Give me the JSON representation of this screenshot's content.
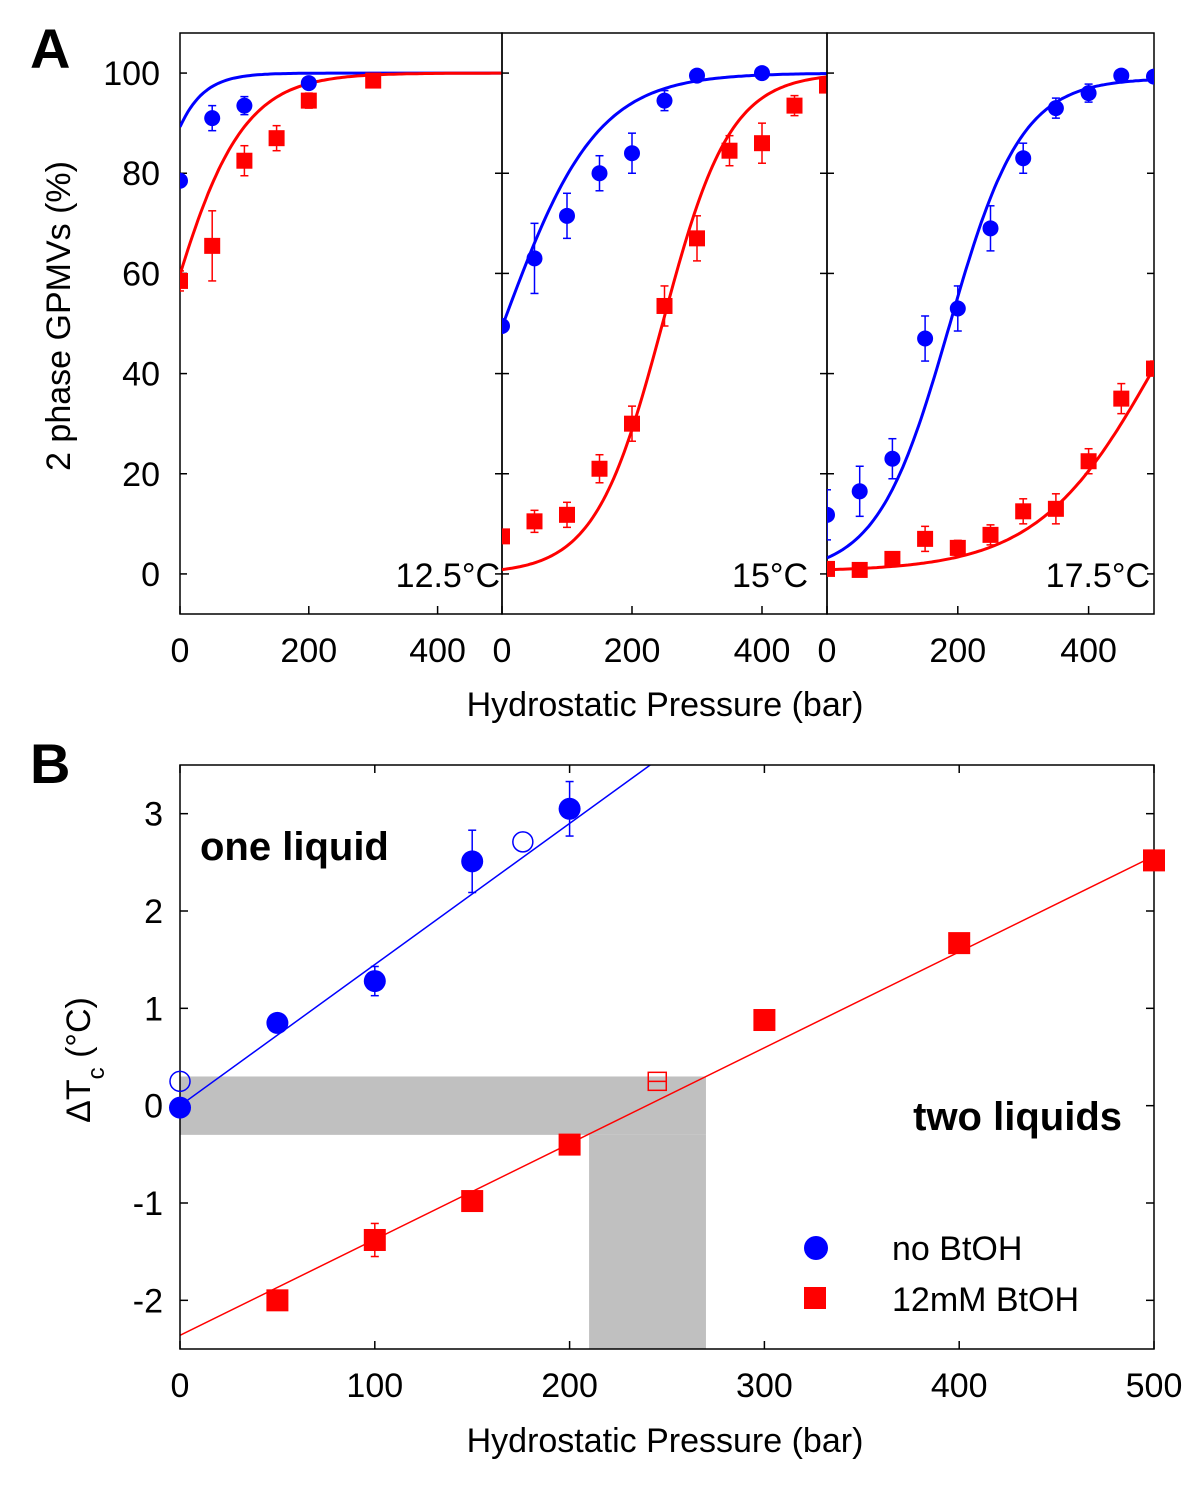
{
  "colors": {
    "blue": "#0000ff",
    "red": "#ff0000",
    "shade": "#c0c0c0",
    "axis": "#000000"
  },
  "figure": {
    "panelA": {
      "letter": "A",
      "ylabel": "2 phase GPMVs (%)",
      "xlabel": "Hydrostatic Pressure (bar)",
      "ylim": [
        -8,
        108
      ],
      "yticks": [
        0,
        20,
        40,
        60,
        80,
        100
      ],
      "ytick_labels": [
        "0",
        "20",
        "40",
        "60",
        "80",
        "100"
      ],
      "xlim": [
        0,
        500
      ],
      "xticks": [
        0,
        200,
        400
      ],
      "xtick_labels": [
        "0",
        "200",
        "400"
      ],
      "subpanels": [
        {
          "temperature": "12.5°C",
          "blue": {
            "points": [
              [
                0,
                78.5,
                0
              ],
              [
                50,
                91,
                2.5
              ],
              [
                100,
                93.5,
                1.8
              ],
              [
                200,
                98,
                1
              ]
            ],
            "fit": {
              "A": 0,
              "B": 100,
              "x0": -72,
              "k": 34
            }
          },
          "red": {
            "points": [
              [
                0,
                58.5,
                2
              ],
              [
                50,
                65.5,
                7
              ],
              [
                100,
                82.5,
                3
              ],
              [
                150,
                87,
                2.5
              ],
              [
                200,
                94.5,
                1.5
              ],
              [
                300,
                98.5,
                1
              ]
            ],
            "fit": {
              "A": 0,
              "B": 100,
              "x0": -23,
              "k": 58
            }
          }
        },
        {
          "temperature": "15°C",
          "blue": {
            "points": [
              [
                0,
                49.5,
                0
              ],
              [
                50,
                63,
                7
              ],
              [
                100,
                71.5,
                4.5
              ],
              [
                150,
                80,
                3.5
              ],
              [
                200,
                84,
                4
              ],
              [
                250,
                94.5,
                2
              ],
              [
                300,
                99.5,
                1
              ],
              [
                400,
                100,
                1
              ]
            ],
            "fit": {
              "A": 0,
              "B": 100,
              "x0": 2,
              "k": 72
            }
          },
          "red": {
            "points": [
              [
                0,
                7.5,
                1
              ],
              [
                50,
                10.5,
                2.2
              ],
              [
                100,
                11.8,
                2.5
              ],
              [
                150,
                21,
                2.8
              ],
              [
                200,
                30,
                3.5
              ],
              [
                250,
                53.5,
                4
              ],
              [
                300,
                67,
                4.5
              ],
              [
                350,
                84.5,
                3
              ],
              [
                400,
                86,
                4
              ],
              [
                450,
                93.5,
                2
              ],
              [
                500,
                97.5,
                1
              ]
            ],
            "fit": {
              "A": 0,
              "B": 100,
              "x0": 247,
              "k": 52
            }
          }
        },
        {
          "temperature": "17.5°C",
          "blue": {
            "points": [
              [
                0,
                11.8,
                5
              ],
              [
                50,
                16.5,
                5
              ],
              [
                100,
                23,
                4
              ],
              [
                150,
                47,
                4.5
              ],
              [
                200,
                53,
                4.5
              ],
              [
                250,
                69,
                4.5
              ],
              [
                300,
                83,
                3
              ],
              [
                350,
                93,
                2
              ],
              [
                400,
                96,
                1.8
              ],
              [
                450,
                99.5,
                1
              ],
              [
                500,
                99.3,
                1
              ]
            ],
            "fit": {
              "A": 0,
              "B": 99,
              "x0": 187,
              "k": 55
            }
          },
          "red": {
            "points": [
              [
                0,
                1,
                0.6
              ],
              [
                50,
                0.8,
                0.6
              ],
              [
                100,
                3,
                0.8
              ],
              [
                150,
                7,
                2.5
              ],
              [
                200,
                5.2,
                1.5
              ],
              [
                250,
                7.8,
                2
              ],
              [
                300,
                12.5,
                2.5
              ],
              [
                350,
                13,
                3
              ],
              [
                400,
                22.5,
                2.5
              ],
              [
                450,
                35,
                3
              ],
              [
                500,
                41,
                1.5
              ]
            ],
            "fit": {
              "A": 0.5,
              "B": 85,
              "x0": 508,
              "k": 92
            }
          }
        }
      ]
    },
    "panelB": {
      "letter": "B",
      "ylabel": "ΔT",
      "ylabel_sub": "c",
      "ylabel_unit": " (°C)",
      "xlabel": "Hydrostatic Pressure (bar)",
      "xlim": [
        0,
        500
      ],
      "ylim": [
        -2.5,
        3.5
      ],
      "xticks": [
        0,
        100,
        200,
        300,
        400,
        500
      ],
      "xtick_labels": [
        "0",
        "100",
        "200",
        "300",
        "400",
        "500"
      ],
      "yticks": [
        -2,
        -1,
        0,
        1,
        2,
        3
      ],
      "ytick_labels": [
        "-2",
        "-1",
        "0",
        "1",
        "2",
        "3"
      ],
      "region_top": "one liquid",
      "region_bottom": "two liquids",
      "blue_fit": {
        "slope": 0.0145,
        "intercept": 0
      },
      "red_fit": {
        "slope": 0.00985,
        "intercept": -2.36
      },
      "blue_points": [
        [
          0,
          -0.02,
          0.08
        ],
        [
          50,
          0.85,
          0.06
        ],
        [
          100,
          1.28,
          0.15
        ],
        [
          150,
          2.51,
          0.32
        ],
        [
          200,
          3.05,
          0.28
        ]
      ],
      "blue_open_points": [
        [
          0,
          0.25
        ],
        [
          176,
          2.71
        ]
      ],
      "red_points": [
        [
          50,
          -2.0,
          0.08
        ],
        [
          100,
          -1.38,
          0.17
        ],
        [
          150,
          -0.98,
          0.1
        ],
        [
          200,
          -0.4,
          0.05
        ],
        [
          300,
          0.88,
          0.05
        ],
        [
          400,
          1.67,
          0.05
        ],
        [
          500,
          2.52,
          0.05
        ]
      ],
      "red_open_points": [
        [
          245,
          0.25
        ]
      ],
      "shade_horizontal": {
        "x": [
          0,
          270
        ],
        "y": [
          -0.3,
          0.3
        ]
      },
      "shade_vertical": {
        "x": [
          210,
          270
        ],
        "y": [
          -2.5,
          -0.3
        ]
      },
      "legend": [
        {
          "label": "no BtOH",
          "series": "blue"
        },
        {
          "label": "12mM BtOH",
          "series": "red"
        }
      ]
    }
  },
  "chart_data": [
    {
      "type": "scatter",
      "title": "12.5°C",
      "xlabel": "Hydrostatic Pressure (bar)",
      "ylabel": "2 phase GPMVs (%)",
      "xlim": [
        0,
        500
      ],
      "ylim": [
        -8,
        108
      ],
      "series": [
        {
          "name": "no BtOH",
          "x": [
            0,
            50,
            100,
            200
          ],
          "y": [
            78.5,
            91,
            93.5,
            98
          ]
        },
        {
          "name": "12mM BtOH",
          "x": [
            0,
            50,
            100,
            150,
            200,
            300
          ],
          "y": [
            58.5,
            65.5,
            82.5,
            87,
            94.5,
            98.5
          ]
        }
      ]
    },
    {
      "type": "scatter",
      "title": "15°C",
      "xlabel": "Hydrostatic Pressure (bar)",
      "ylabel": "2 phase GPMVs (%)",
      "xlim": [
        0,
        500
      ],
      "ylim": [
        -8,
        108
      ],
      "series": [
        {
          "name": "no BtOH",
          "x": [
            0,
            50,
            100,
            150,
            200,
            250,
            300,
            400
          ],
          "y": [
            49.5,
            63,
            71.5,
            80,
            84,
            94.5,
            99.5,
            100
          ]
        },
        {
          "name": "12mM BtOH",
          "x": [
            0,
            50,
            100,
            150,
            200,
            250,
            300,
            350,
            400,
            450,
            500
          ],
          "y": [
            7.5,
            10.5,
            11.8,
            21,
            30,
            53.5,
            67,
            84.5,
            86,
            93.5,
            97.5
          ]
        }
      ]
    },
    {
      "type": "scatter",
      "title": "17.5°C",
      "xlabel": "Hydrostatic Pressure (bar)",
      "ylabel": "2 phase GPMVs (%)",
      "xlim": [
        0,
        500
      ],
      "ylim": [
        -8,
        108
      ],
      "series": [
        {
          "name": "no BtOH",
          "x": [
            0,
            50,
            100,
            150,
            200,
            250,
            300,
            350,
            400,
            450,
            500
          ],
          "y": [
            11.8,
            16.5,
            23,
            47,
            53,
            69,
            83,
            93,
            96,
            99.5,
            99.3
          ]
        },
        {
          "name": "12mM BtOH",
          "x": [
            0,
            50,
            100,
            150,
            200,
            250,
            300,
            350,
            400,
            450,
            500
          ],
          "y": [
            1,
            0.8,
            3,
            7,
            5.2,
            7.8,
            12.5,
            13,
            22.5,
            35,
            41
          ]
        }
      ]
    },
    {
      "type": "scatter",
      "title": "",
      "xlabel": "Hydrostatic Pressure (bar)",
      "ylabel": "ΔTc (°C)",
      "xlim": [
        0,
        500
      ],
      "ylim": [
        -2.5,
        3.5
      ],
      "annotations": [
        "one liquid",
        "two liquids"
      ],
      "legend": [
        "no BtOH",
        "12mM BtOH"
      ],
      "series": [
        {
          "name": "no BtOH",
          "x": [
            0,
            50,
            100,
            150,
            200
          ],
          "y": [
            -0.02,
            0.85,
            1.28,
            2.51,
            3.05
          ]
        },
        {
          "name": "12mM BtOH",
          "x": [
            50,
            100,
            150,
            200,
            300,
            400,
            500
          ],
          "y": [
            -2.0,
            -1.38,
            -0.98,
            -0.4,
            0.88,
            1.67,
            2.52
          ]
        }
      ]
    }
  ]
}
